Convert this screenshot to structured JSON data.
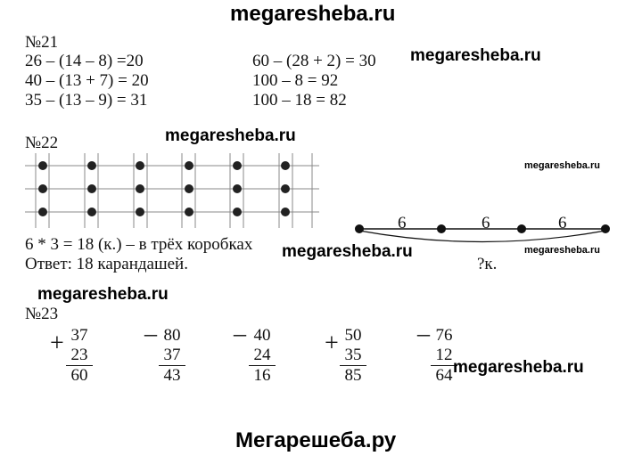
{
  "watermarks": {
    "top": "megaresheba.ru",
    "w1": "megaresheba.ru",
    "w2": "megaresheba.ru",
    "w3_small": "megaresheba.ru",
    "w4": "megaresheba.ru",
    "w5_small": "megaresheba.ru",
    "w6": "megaresheba.ru",
    "w7": "megaresheba.ru",
    "footer": "Мегарешеба.ру"
  },
  "task21": {
    "number": "№21",
    "left": [
      "26 – (14 – 8) =20",
      "40 – (13 + 7) = 20",
      "35 – (13 – 9) = 31"
    ],
    "right": [
      "60 – (28 + 2) = 30",
      "100 – 8 = 92",
      "100 – 18 = 82"
    ]
  },
  "task22": {
    "number": "№22",
    "grid": {
      "columns": 6,
      "rows": 3
    },
    "solution": "6 * 3 = 18 (к.) – в трёх коробках",
    "answer": "Ответ: 18 карандашей.",
    "diagram": {
      "segments": [
        "6",
        "6",
        "6"
      ],
      "question": "?к."
    }
  },
  "task23": {
    "number": "№23",
    "columns": [
      {
        "sign": "+",
        "top": "37",
        "bottom": "23",
        "result": "60"
      },
      {
        "sign": "_",
        "top": "80",
        "bottom": "37",
        "result": "43"
      },
      {
        "sign": "_",
        "top": "40",
        "bottom": "24",
        "result": "16"
      },
      {
        "sign": "+",
        "top": "50",
        "bottom": "35",
        "result": "85"
      },
      {
        "sign": "_",
        "top": "76",
        "bottom": "12",
        "result": "64"
      }
    ]
  }
}
